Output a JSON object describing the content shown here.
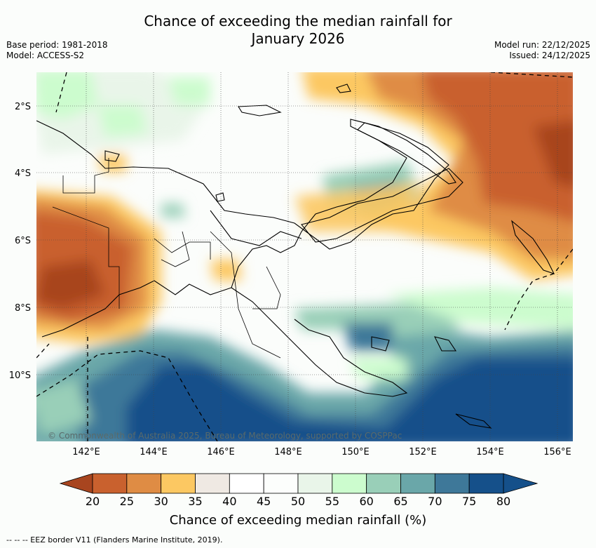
{
  "title": {
    "line1": "Chance of exceeding the median rainfall for",
    "line2": "January 2026"
  },
  "meta": {
    "base_period": "Base period: 1981-2018",
    "model": "Model: ACCESS-S2",
    "model_run": "Model run: 22/12/2025",
    "issued": "Issued: 24/12/2025"
  },
  "map": {
    "lat_labels": [
      "2°S",
      "4°S",
      "6°S",
      "8°S",
      "10°S"
    ],
    "lon_labels": [
      "142°E",
      "144°E",
      "146°E",
      "148°E",
      "150°E",
      "152°E",
      "154°E",
      "156°E"
    ],
    "copyright": "© Commonwealth of Australia 2025, Bureau of Meteorology, supported by COSPPac"
  },
  "colorbar": {
    "ticks": [
      "20",
      "25",
      "30",
      "35",
      "40",
      "45",
      "50",
      "55",
      "60",
      "65",
      "70",
      "75",
      "80"
    ],
    "colors": [
      "#a8451f",
      "#c9612e",
      "#df8c44",
      "#fcc862",
      "#efe9e3",
      "#ffffff",
      "#fcfefc",
      "#e9f5e9",
      "#ccfcce",
      "#99cfb8",
      "#6aa7a9",
      "#3e7899",
      "#15508a"
    ],
    "title": "Chance of exceeding median rainfall (%)"
  },
  "footer": "--  --  -- EEZ border V11 (Flanders Marine Institute, 2019)."
}
